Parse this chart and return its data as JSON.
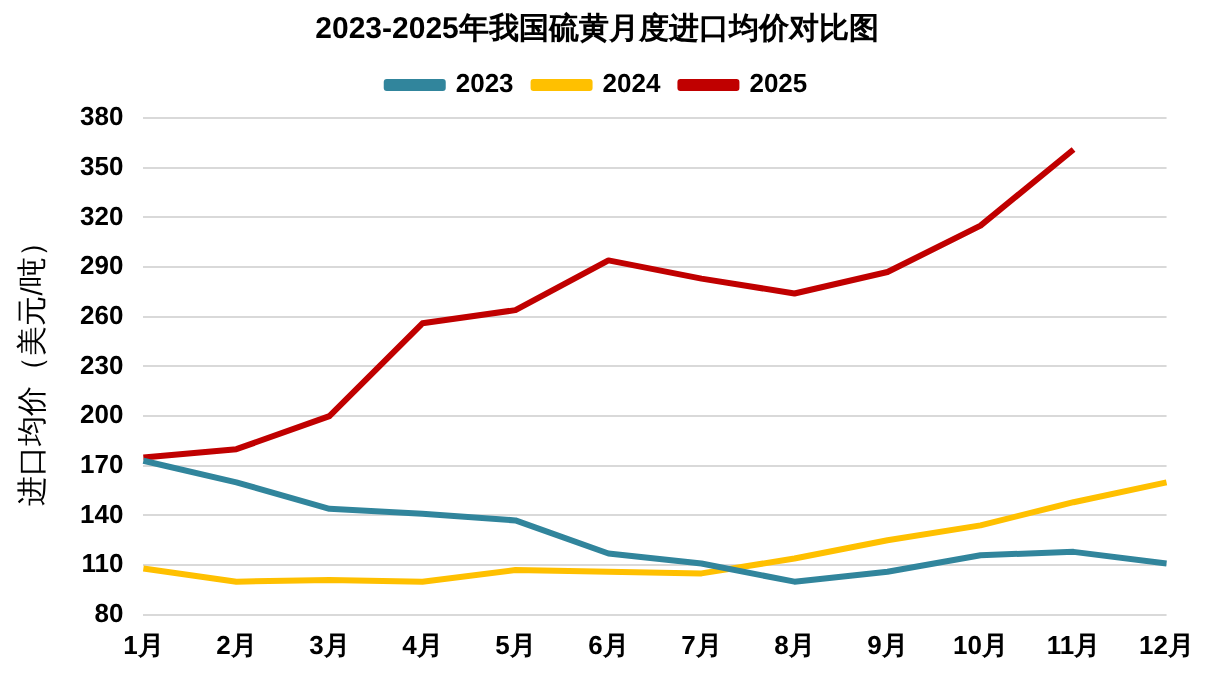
{
  "chart_data": {
    "type": "line",
    "title": "2023-2025年我国硫黄月度进口均价对比图",
    "ylabel": "进口均价（美元/吨）",
    "categories": [
      "1月",
      "2月",
      "3月",
      "4月",
      "5月",
      "6月",
      "7月",
      "8月",
      "9月",
      "10月",
      "11月",
      "12月"
    ],
    "series": [
      {
        "name": "2023",
        "color": "#31859c",
        "values": [
          173,
          160,
          144,
          141,
          137,
          117,
          111,
          100,
          106,
          116,
          118,
          111
        ]
      },
      {
        "name": "2024",
        "color": "#ffc000",
        "values": [
          108,
          100,
          101,
          100,
          107,
          106,
          105,
          114,
          125,
          134,
          148,
          160
        ]
      },
      {
        "name": "2025",
        "color": "#c00000",
        "values": [
          175,
          180,
          200,
          256,
          264,
          294,
          283,
          274,
          287,
          315,
          361,
          null
        ]
      }
    ],
    "ylim": [
      80,
      380
    ],
    "yticks": [
      80,
      110,
      140,
      170,
      200,
      230,
      260,
      290,
      320,
      350,
      380
    ],
    "grid": "y",
    "legend": "top",
    "marker": "none",
    "line_style": "solid"
  }
}
